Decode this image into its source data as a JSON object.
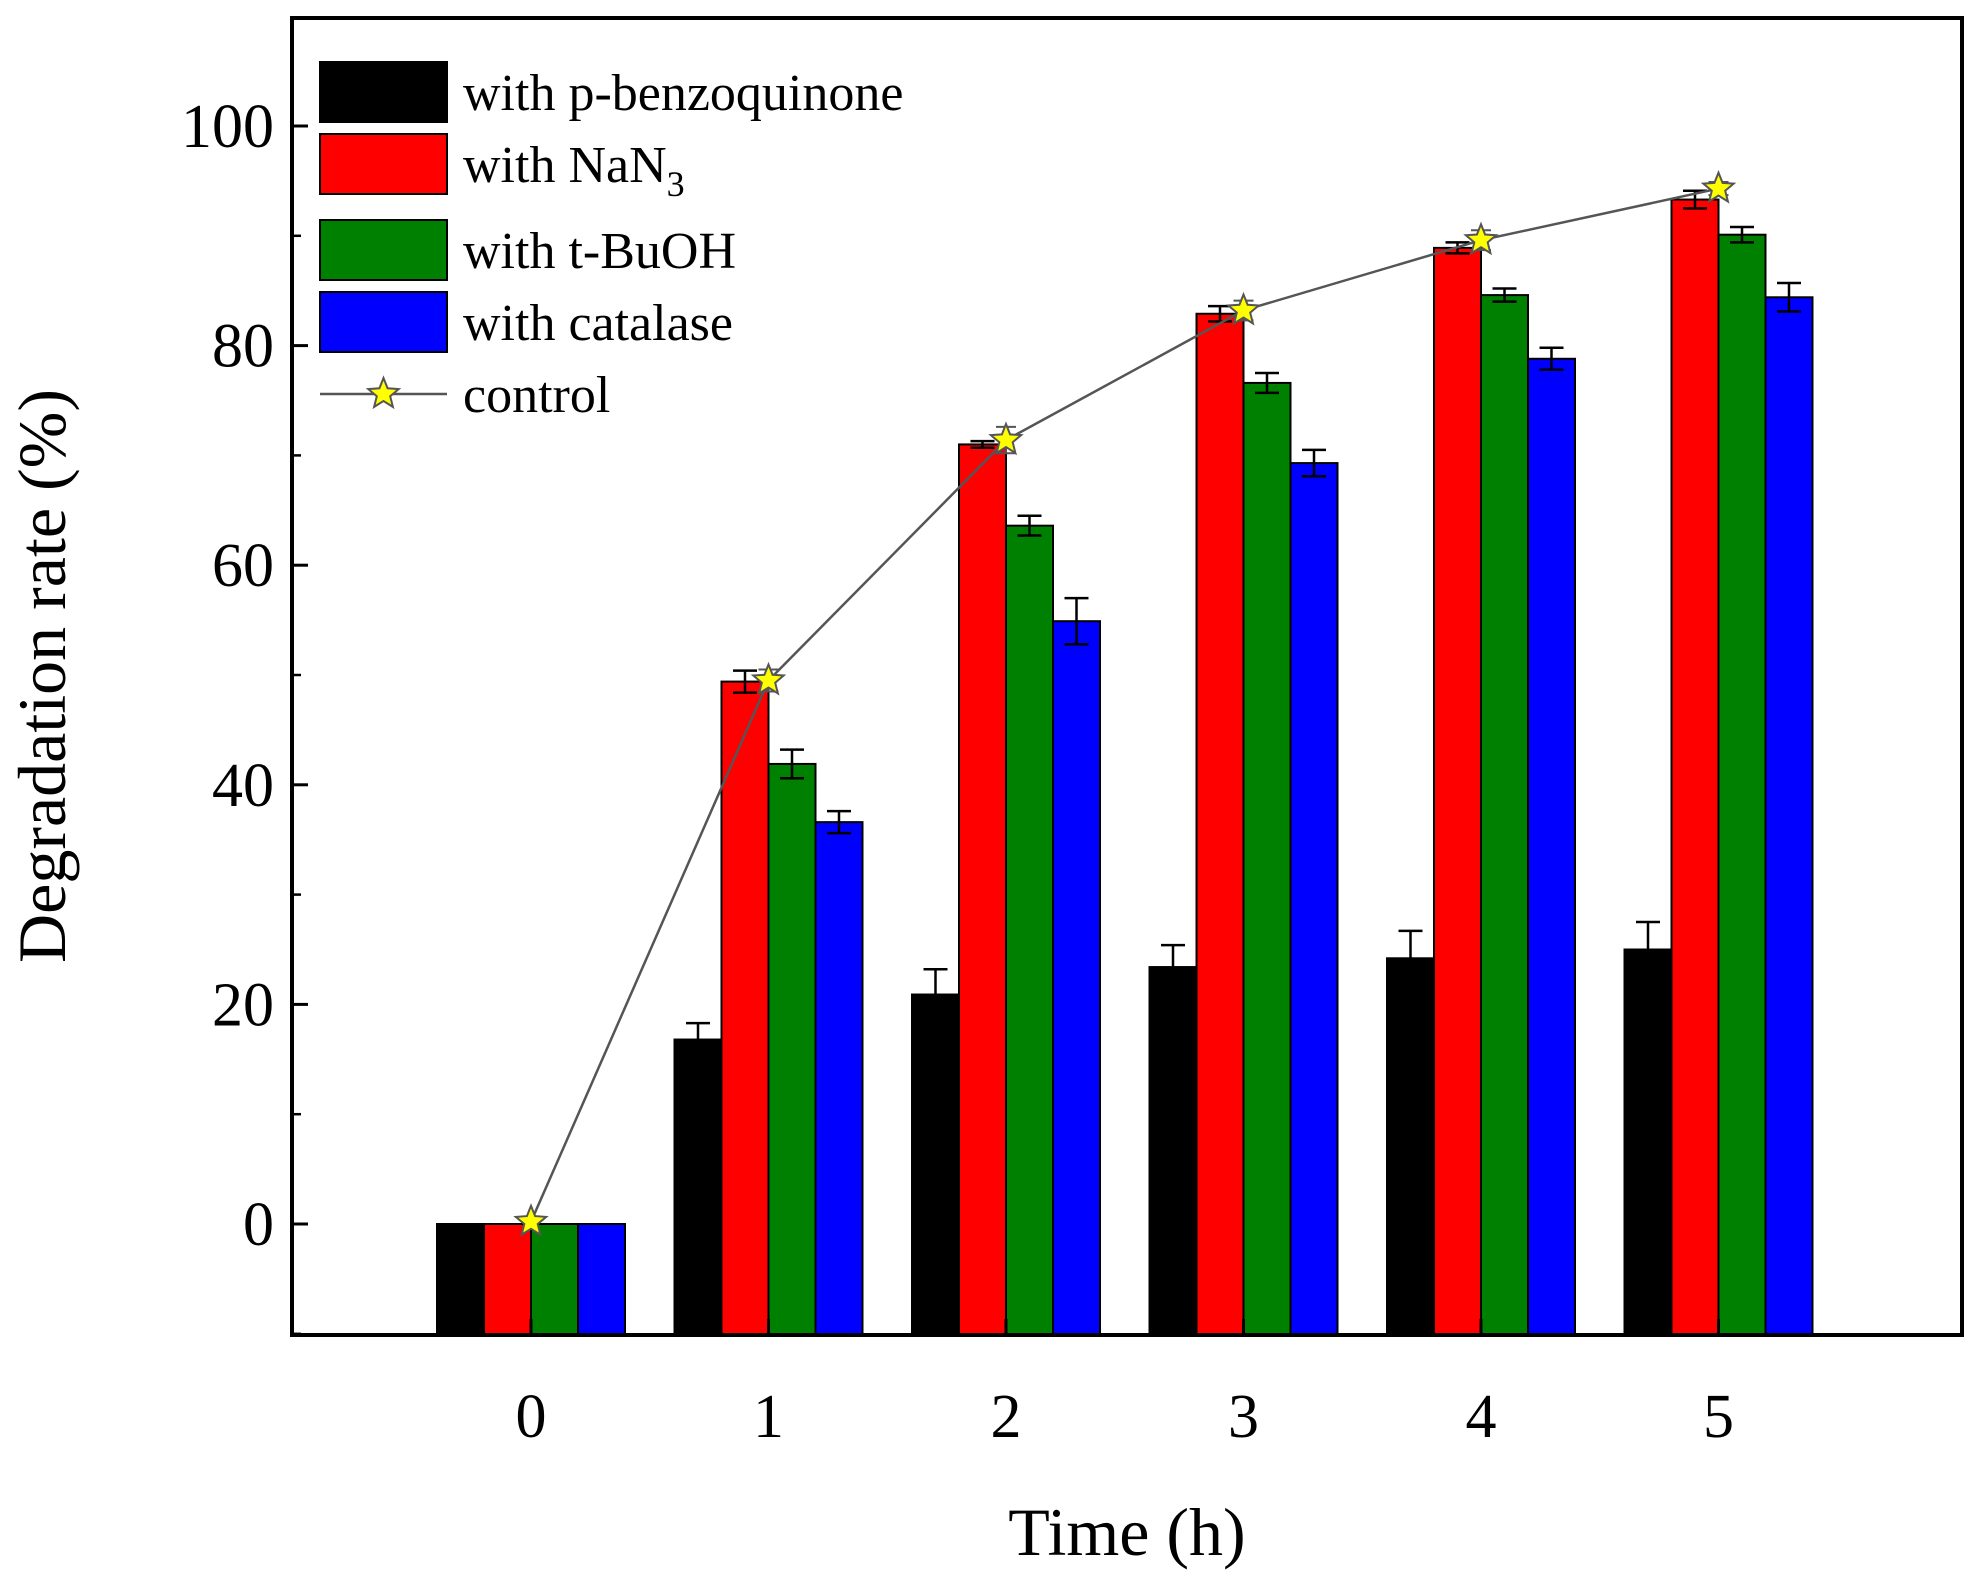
{
  "chart_data": {
    "type": "bar",
    "title": "",
    "xlabel": "Time (h)",
    "ylabel": "Degradation rate (%)",
    "ylim": [
      -10,
      110
    ],
    "y_ticks": [
      0,
      20,
      40,
      60,
      80,
      100
    ],
    "categories": [
      "0",
      "1",
      "2",
      "3",
      "4",
      "5"
    ],
    "legend_position": "top-left",
    "series": [
      {
        "name": "with p-benzoquinone",
        "label_main": "with p-benzoquinone",
        "label_sub": "",
        "color": "#000000",
        "values": [
          0,
          16.8,
          20.9,
          23.4,
          24.2,
          25.0
        ],
        "errors": [
          0,
          1.5,
          2.3,
          2.0,
          2.5,
          2.5
        ]
      },
      {
        "name": "with NaN3",
        "label_main": "with NaN",
        "label_sub": "3",
        "color": "#ff0000",
        "values": [
          0,
          49.4,
          71.0,
          82.9,
          88.9,
          93.3
        ],
        "errors": [
          0,
          1.0,
          0.3,
          0.7,
          0.5,
          0.8
        ]
      },
      {
        "name": "with t-BuOH",
        "label_main": "with t-BuOH",
        "label_sub": "",
        "color": "#008000",
        "values": [
          0,
          41.9,
          63.6,
          76.6,
          84.6,
          90.1
        ],
        "errors": [
          0,
          1.3,
          0.9,
          0.9,
          0.6,
          0.7
        ]
      },
      {
        "name": "with catalase",
        "label_main": "with catalase",
        "label_sub": "",
        "color": "#0000ff",
        "values": [
          0,
          36.6,
          54.9,
          69.3,
          78.8,
          84.4
        ],
        "errors": [
          0,
          1.0,
          2.1,
          1.2,
          1.0,
          1.3
        ]
      }
    ],
    "line_series": {
      "name": "control",
      "label": "control",
      "line_color": "#555555",
      "marker": "star",
      "marker_color": "#ffff00",
      "values": [
        0.2,
        49.5,
        71.4,
        83.2,
        89.6,
        94.3
      ],
      "errors": [
        0,
        1.0,
        1.2,
        0.9,
        0.9,
        0.6
      ]
    }
  }
}
